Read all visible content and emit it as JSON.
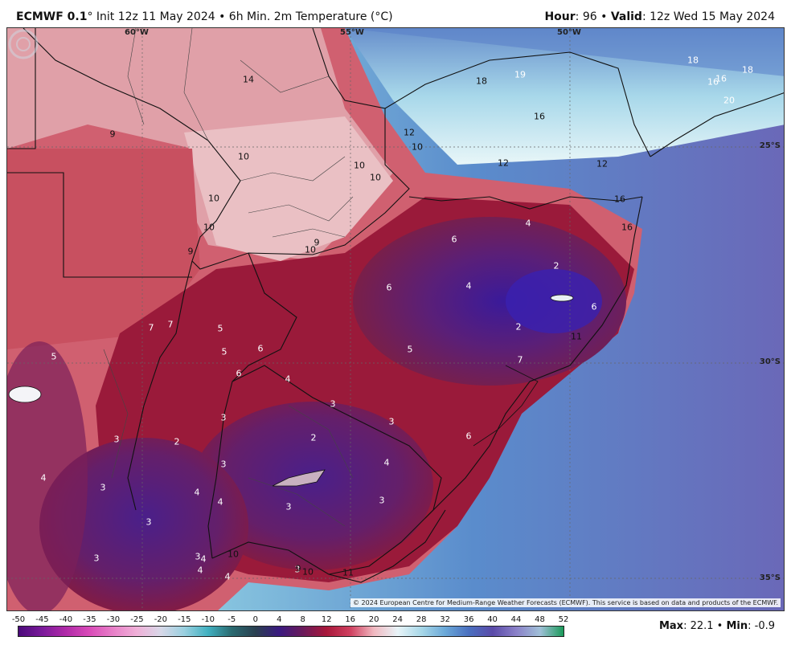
{
  "header": {
    "model": "ECMWF 0.1",
    "model_suffix": "° Init 12z 11 May 2024 • 6h Min. 2m Temperature (°C)",
    "hour_label": "Hour",
    "hour_value": ": 96 • ",
    "valid_label": "Valid",
    "valid_value": ": 12z Wed 15 May 2024"
  },
  "map": {
    "longitudes": [
      "60°W",
      "55°W",
      "50°W"
    ],
    "latitudes": [
      "25°S",
      "30°S",
      "35°S"
    ],
    "copyright": "© 2024 European Centre for Medium-Range Weather Forecasts (ECMWF). This service is based on data and products of the ECMWF.",
    "values": [
      {
        "t": "14",
        "tone": "dk"
      },
      {
        "t": "9",
        "tone": "dk"
      },
      {
        "t": "10",
        "tone": "dk"
      },
      {
        "t": "10",
        "tone": "dk"
      },
      {
        "t": "10",
        "tone": "dk"
      },
      {
        "t": "10",
        "tone": "dk"
      },
      {
        "t": "9",
        "tone": "dk"
      },
      {
        "t": "9",
        "tone": "dk"
      },
      {
        "t": "10",
        "tone": "dk"
      },
      {
        "t": "10",
        "tone": "dk"
      },
      {
        "t": "12",
        "tone": "dk"
      },
      {
        "t": "10",
        "tone": "dk"
      },
      {
        "t": "12",
        "tone": "dk"
      },
      {
        "t": "12",
        "tone": "dk"
      },
      {
        "t": "18",
        "tone": "dk"
      },
      {
        "t": "19",
        "tone": "lt"
      },
      {
        "t": "16",
        "tone": "dk"
      },
      {
        "t": "18",
        "tone": "lt"
      },
      {
        "t": "16",
        "tone": "lt"
      },
      {
        "t": "16",
        "tone": "lt"
      },
      {
        "t": "18",
        "tone": "lt"
      },
      {
        "t": "20",
        "tone": "lt"
      },
      {
        "t": "16",
        "tone": "dk"
      },
      {
        "t": "16",
        "tone": "dk"
      },
      {
        "t": "4",
        "tone": "lt"
      },
      {
        "t": "6",
        "tone": "lt"
      },
      {
        "t": "2",
        "tone": "lt"
      },
      {
        "t": "6",
        "tone": "lt"
      },
      {
        "t": "4",
        "tone": "lt"
      },
      {
        "t": "6",
        "tone": "lt"
      },
      {
        "t": "2",
        "tone": "lt"
      },
      {
        "t": "11",
        "tone": "dk"
      },
      {
        "t": "7",
        "tone": "lt"
      },
      {
        "t": "5",
        "tone": "lt"
      },
      {
        "t": "7",
        "tone": "lt"
      },
      {
        "t": "7",
        "tone": "lt"
      },
      {
        "t": "5",
        "tone": "lt"
      },
      {
        "t": "5",
        "tone": "lt"
      },
      {
        "t": "6",
        "tone": "lt"
      },
      {
        "t": "6",
        "tone": "lt"
      },
      {
        "t": "5",
        "tone": "lt"
      },
      {
        "t": "4",
        "tone": "lt"
      },
      {
        "t": "3",
        "tone": "lt"
      },
      {
        "t": "3",
        "tone": "lt"
      },
      {
        "t": "3",
        "tone": "lt"
      },
      {
        "t": "2",
        "tone": "lt"
      },
      {
        "t": "2",
        "tone": "lt"
      },
      {
        "t": "6",
        "tone": "lt"
      },
      {
        "t": "3",
        "tone": "lt"
      },
      {
        "t": "4",
        "tone": "lt"
      },
      {
        "t": "3",
        "tone": "lt"
      },
      {
        "t": "4",
        "tone": "lt"
      },
      {
        "t": "3",
        "tone": "lt"
      },
      {
        "t": "4",
        "tone": "lt"
      },
      {
        "t": "3",
        "tone": "lt"
      },
      {
        "t": "3",
        "tone": "lt"
      },
      {
        "t": "4",
        "tone": "lt"
      },
      {
        "t": "3",
        "tone": "lt"
      },
      {
        "t": "3",
        "tone": "lt"
      },
      {
        "t": "3",
        "tone": "lt"
      },
      {
        "t": "4",
        "tone": "lt"
      },
      {
        "t": "4",
        "tone": "lt"
      },
      {
        "t": "4",
        "tone": "lt"
      },
      {
        "t": "3",
        "tone": "lt"
      },
      {
        "t": "10",
        "tone": "dk"
      },
      {
        "t": "9",
        "tone": "dk"
      },
      {
        "t": "10",
        "tone": "dk"
      },
      {
        "t": "11",
        "tone": "dk"
      }
    ]
  },
  "colorbar": {
    "labels": [
      "-50",
      "-45",
      "-40",
      "-35",
      "-30",
      "-25",
      "-20",
      "-15",
      "-10",
      "-5",
      "0",
      "4",
      "8",
      "12",
      "16",
      "20",
      "24",
      "28",
      "32",
      "36",
      "40",
      "44",
      "48",
      "52"
    ],
    "colors": [
      "#4a0a7a",
      "#7a1a9a",
      "#b02aa8",
      "#d94ab8",
      "#e880c8",
      "#f0b0d8",
      "#d8d8e8",
      "#9ad0e0",
      "#40b0c0",
      "#2a6a70",
      "#2a4050",
      "#3a1a80",
      "#6a1a5a",
      "#a8183a",
      "#d04060",
      "#f0b8c0",
      "#e8f4f8",
      "#a8d8e8",
      "#6aa8d8",
      "#4a70c0",
      "#5a4aa8",
      "#8a80c8",
      "#a0c0d8",
      "#1a9a5a"
    ]
  },
  "stats": {
    "max_label": "Max",
    "max_value": ": 22.1 • ",
    "min_label": "Min",
    "min_value": ": -0.9"
  }
}
